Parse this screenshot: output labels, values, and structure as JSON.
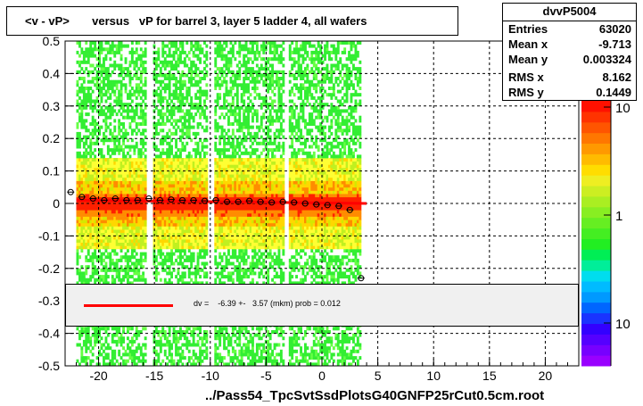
{
  "title": "<v - vP>       versus   vP for barrel 3, layer 5 ladder 4, all wafers",
  "stats": {
    "name": "dvvP5004",
    "rows": [
      {
        "label": "Entries",
        "value": "63020"
      },
      {
        "label": "Mean x",
        "value": "-9.713"
      },
      {
        "label": "Mean y",
        "value": "0.003324"
      },
      {
        "label": "RMS x",
        "value": "8.162"
      },
      {
        "label": "RMS y",
        "value": "0.1449"
      }
    ]
  },
  "fit_legend": "dv =    -6.39 +-   3.57 (mkm) prob = 0.012",
  "x_axis_title": "../Pass54_TpcSvtSsdPlotsG40GNFP25rCut0.5cm.root",
  "colors": {
    "fit_line": "#ff0000",
    "frame": "#000000"
  },
  "chart_data": {
    "type": "heatmap",
    "title": "<v - vP>       versus   vP for barrel 3, layer 5 ladder 4, all wafers",
    "xlabel": "../Pass54_TpcSvtSsdPlotsG40GNFP25rCut0.5cm.root",
    "ylabel": "",
    "xlim": [
      -23,
      23
    ],
    "ylim": [
      -0.5,
      0.5
    ],
    "x_ticks": [
      "-20",
      "-15",
      "-10",
      "-5",
      "0",
      "5",
      "10",
      "15",
      "20"
    ],
    "y_ticks": [
      "-0.5",
      "-0.4",
      "-0.3",
      "-0.2",
      "-0.1",
      "0",
      "0.1",
      "0.2",
      "0.3",
      "0.4",
      "0.5"
    ],
    "z_scale": "log",
    "z_ticks": [
      "10",
      "1",
      "10"
    ],
    "populated_x_range": [
      -22,
      3.5
    ],
    "fit_line": {
      "x": [
        -22,
        4
      ],
      "y": [
        0.01,
        0.0
      ]
    },
    "profile_points": {
      "x": [
        -22.5,
        -21.5,
        -20.5,
        -19.5,
        -18.5,
        -17.5,
        -16.5,
        -15.5,
        -14.5,
        -13.5,
        -12.5,
        -11.5,
        -10.5,
        -9.5,
        -8.5,
        -7.5,
        -6.5,
        -5.5,
        -4.5,
        -3.5,
        -2.5,
        -1.5,
        -0.5,
        0.5,
        1.5,
        2.5,
        3.5
      ],
      "y": [
        0.035,
        0.02,
        0.015,
        0.01,
        0.015,
        0.01,
        0.01,
        0.015,
        0.01,
        0.012,
        0.01,
        0.01,
        0.008,
        0.01,
        0.005,
        0.005,
        0.008,
        0.005,
        0.003,
        0.005,
        0.003,
        0.0,
        -0.003,
        -0.005,
        -0.008,
        -0.02,
        -0.23
      ]
    }
  }
}
